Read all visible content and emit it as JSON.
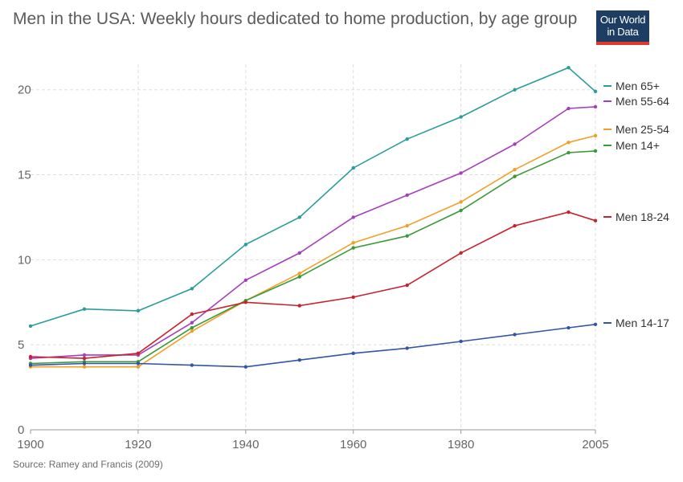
{
  "header": {
    "title": "Men in the USA: Weekly hours dedicated to home production, by age group"
  },
  "logo": {
    "line1": "Our World",
    "line2": "in Data"
  },
  "footer": {
    "source": "Source: Ramey and Francis (2009)"
  },
  "chart_data": {
    "type": "line",
    "title": "Men in the USA: Weekly hours dedicated to home production, by age group",
    "xlabel": "",
    "ylabel": "",
    "xlim": [
      1900,
      2005
    ],
    "ylim": [
      0,
      21.5
    ],
    "x_ticks": [
      1900,
      1920,
      1940,
      1960,
      1980,
      2005
    ],
    "y_ticks": [
      0,
      5,
      10,
      15,
      20
    ],
    "grid": true,
    "legend": "right",
    "series": [
      {
        "name": "Men 65+",
        "color": "#2a9d9a",
        "points": [
          [
            1900,
            6.1
          ],
          [
            1910,
            7.1
          ],
          [
            1920,
            7.0
          ],
          [
            1930,
            8.3
          ],
          [
            1940,
            10.9
          ],
          [
            1950,
            12.5
          ],
          [
            1960,
            15.4
          ],
          [
            1970,
            17.1
          ],
          [
            1980,
            18.4
          ],
          [
            1990,
            20.0
          ],
          [
            2000,
            21.3
          ],
          [
            2005,
            19.9
          ]
        ]
      },
      {
        "name": "Men 55-64",
        "color": "#a43fbd",
        "points": [
          [
            1900,
            4.2
          ],
          [
            1910,
            4.4
          ],
          [
            1920,
            4.4
          ],
          [
            1930,
            6.3
          ],
          [
            1940,
            8.8
          ],
          [
            1950,
            10.4
          ],
          [
            1960,
            12.5
          ],
          [
            1970,
            13.8
          ],
          [
            1980,
            15.1
          ],
          [
            1990,
            16.8
          ],
          [
            2000,
            18.9
          ],
          [
            2005,
            19.0
          ]
        ]
      },
      {
        "name": "Men 25-54",
        "color": "#f29f27",
        "points": [
          [
            1900,
            3.7
          ],
          [
            1910,
            3.7
          ],
          [
            1920,
            3.7
          ],
          [
            1930,
            5.8
          ],
          [
            1940,
            7.6
          ],
          [
            1950,
            9.2
          ],
          [
            1960,
            11.0
          ],
          [
            1970,
            12.0
          ],
          [
            1980,
            13.4
          ],
          [
            1990,
            15.3
          ],
          [
            2000,
            16.9
          ],
          [
            2005,
            17.3
          ]
        ]
      },
      {
        "name": "Men 14+",
        "color": "#3a9a39",
        "points": [
          [
            1900,
            3.9
          ],
          [
            1910,
            4.0
          ],
          [
            1920,
            4.0
          ],
          [
            1930,
            6.0
          ],
          [
            1940,
            7.6
          ],
          [
            1950,
            9.0
          ],
          [
            1960,
            10.7
          ],
          [
            1970,
            11.4
          ],
          [
            1980,
            12.9
          ],
          [
            1990,
            14.9
          ],
          [
            2000,
            16.3
          ],
          [
            2005,
            16.4
          ]
        ]
      },
      {
        "name": "Men 18-24",
        "color": "#c8222e",
        "points": [
          [
            1900,
            4.3
          ],
          [
            1910,
            4.2
          ],
          [
            1920,
            4.5
          ],
          [
            1930,
            6.8
          ],
          [
            1940,
            7.5
          ],
          [
            1950,
            7.3
          ],
          [
            1960,
            7.8
          ],
          [
            1970,
            8.5
          ],
          [
            1980,
            10.4
          ],
          [
            1990,
            12.0
          ],
          [
            2000,
            12.8
          ],
          [
            2005,
            12.3
          ]
        ]
      },
      {
        "name": "Men 14-17",
        "color": "#3255a4",
        "points": [
          [
            1900,
            3.8
          ],
          [
            1910,
            3.9
          ],
          [
            1920,
            3.9
          ],
          [
            1930,
            3.8
          ],
          [
            1940,
            3.7
          ],
          [
            1950,
            4.1
          ],
          [
            1960,
            4.5
          ],
          [
            1970,
            4.8
          ],
          [
            1980,
            5.2
          ],
          [
            1990,
            5.6
          ],
          [
            2000,
            6.0
          ],
          [
            2005,
            6.2
          ]
        ]
      }
    ]
  }
}
